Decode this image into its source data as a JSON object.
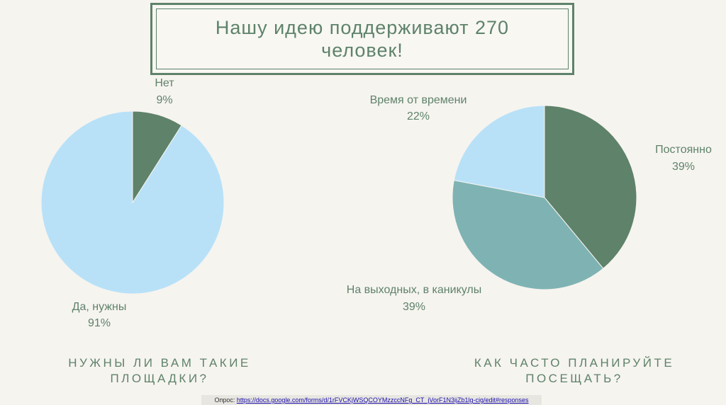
{
  "title": {
    "line1": "Нашу идею поддерживают 270",
    "line2": "человек!"
  },
  "chart_data": [
    {
      "type": "pie",
      "title": "НУЖНЫ ЛИ ВАМ ТАКИЕ ПЛОЩАДКИ?",
      "title_lines": [
        "НУЖНЫ ЛИ ВАМ ТАКИЕ",
        "ПЛОЩАДКИ?"
      ],
      "slices": [
        {
          "label": "Нет",
          "value": 9,
          "display": "9%",
          "color": "#5e826a"
        },
        {
          "label": "Да, нужны",
          "value": 91,
          "display": "91%",
          "color": "#b8e1f8"
        }
      ]
    },
    {
      "type": "pie",
      "title": "КАК ЧАСТО ПЛАНИРУЙТЕ ПОСЕЩАТЬ?",
      "title_lines": [
        "КАК ЧАСТО ПЛАНИРУЙТЕ",
        "ПОСЕЩАТЬ?"
      ],
      "slices": [
        {
          "label": "Постоянно",
          "value": 39,
          "display": "39%",
          "color": "#5e826a"
        },
        {
          "label": "На выходных, в каникулы",
          "value": 39,
          "display": "39%",
          "color": "#7fb3b3"
        },
        {
          "label": "Время от времени",
          "value": 22,
          "display": "22%",
          "color": "#b8e1f8"
        }
      ]
    }
  ],
  "footer": {
    "prefix": "Опрос: ",
    "link": "https://docs.google.com/forms/d/1rFVCKjWSQCOYMzzccNFg_CT_jVorF1N3ijZb1lg-cig/edit#responses"
  }
}
